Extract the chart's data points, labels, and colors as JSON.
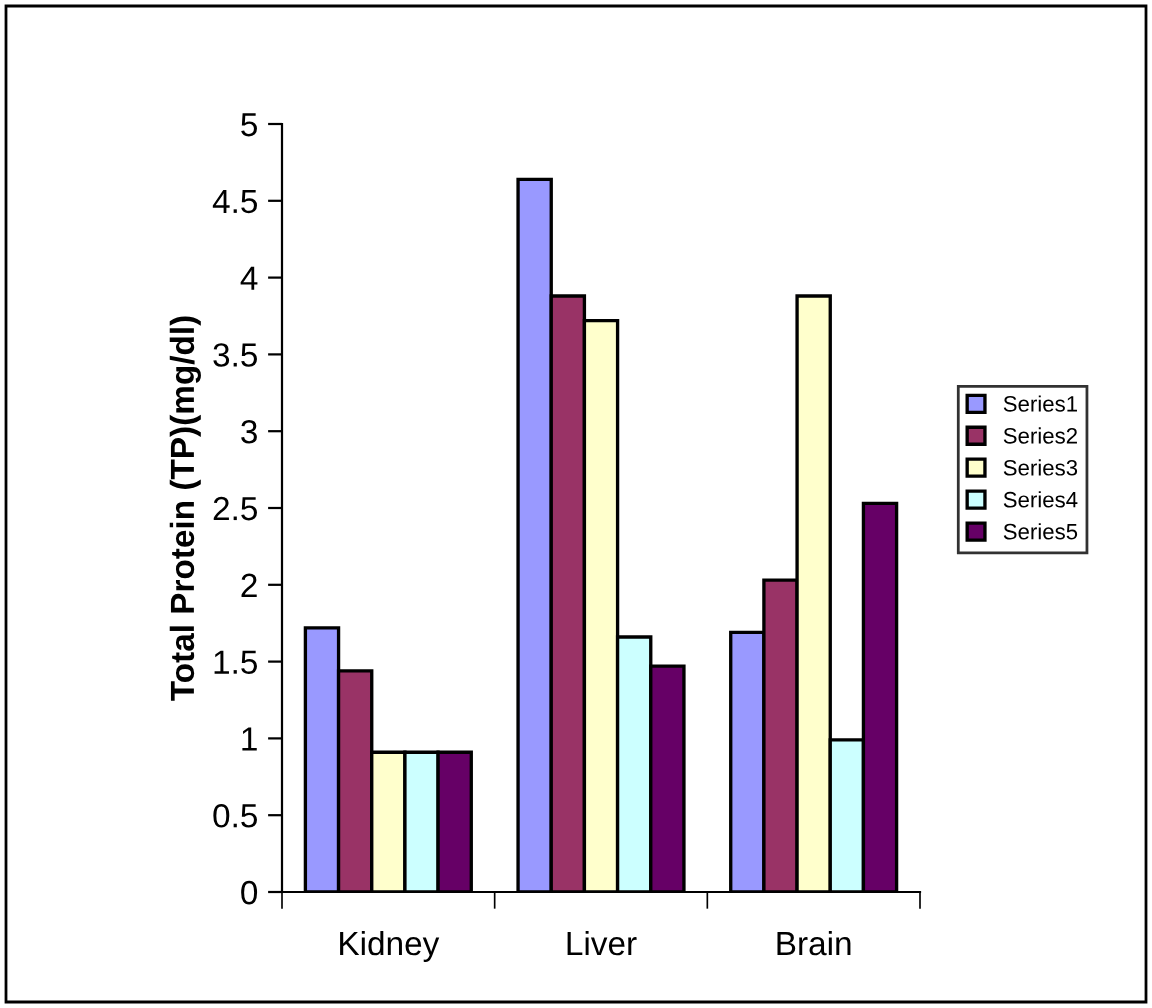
{
  "chart_data": {
    "type": "bar",
    "ylabel": "Total Protein (TP)(mg/dl)",
    "categories": [
      "Kidney",
      "Liver",
      "Brain"
    ],
    "series": [
      {
        "name": "Series1",
        "color": "#9999ff",
        "values": [
          1.72,
          4.64,
          1.69
        ]
      },
      {
        "name": "Series2",
        "color": "#993366",
        "values": [
          1.44,
          3.88,
          2.03
        ]
      },
      {
        "name": "Series3",
        "color": "#ffffcc",
        "values": [
          0.91,
          3.72,
          3.88
        ]
      },
      {
        "name": "Series4",
        "color": "#ccffff",
        "values": [
          0.91,
          1.66,
          0.99
        ]
      },
      {
        "name": "Series5",
        "color": "#660066",
        "values": [
          0.91,
          1.47,
          2.53
        ]
      }
    ],
    "ylim": [
      0,
      5
    ],
    "yticks": [
      0,
      0.5,
      1,
      1.5,
      2,
      2.5,
      3,
      3.5,
      4,
      4.5,
      5
    ],
    "grid": false,
    "legend": "right"
  }
}
